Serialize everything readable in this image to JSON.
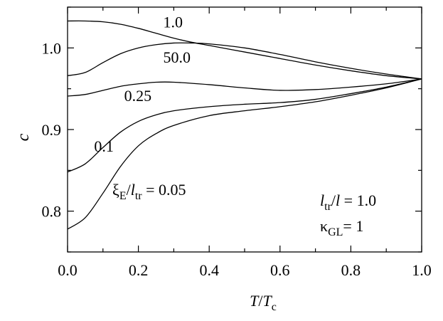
{
  "chart_data": {
    "type": "line",
    "xlim": [
      0.0,
      1.0
    ],
    "ylim": [
      0.75,
      1.05
    ],
    "x_ticks": [
      "0.0",
      "0.2",
      "0.4",
      "0.6",
      "0.8",
      "1.0"
    ],
    "x_tick_values": [
      0.0,
      0.2,
      0.4,
      0.6,
      0.8,
      1.0
    ],
    "y_ticks": [
      "0.8",
      "0.9",
      "1.0"
    ],
    "y_tick_values": [
      0.8,
      0.9,
      1.0
    ],
    "x_minor_step": 0.1,
    "y_minor_step": 0.05,
    "grid": false,
    "xlabel": {
      "main": "T",
      "sep": "/",
      "main2": "T",
      "sub2": "c"
    },
    "ylabel": "c",
    "series": [
      {
        "label": "ξE/ltr = 0.05",
        "x": [
          0.0,
          0.05,
          0.1,
          0.15,
          0.2,
          0.25,
          0.3,
          0.4,
          0.5,
          0.6,
          0.7,
          0.8,
          0.9,
          1.0
        ],
        "y": [
          0.778,
          0.792,
          0.822,
          0.855,
          0.88,
          0.895,
          0.905,
          0.917,
          0.923,
          0.928,
          0.934,
          0.942,
          0.951,
          0.962
        ]
      },
      {
        "label": "0.1",
        "x": [
          0.0,
          0.05,
          0.1,
          0.15,
          0.2,
          0.25,
          0.3,
          0.4,
          0.5,
          0.6,
          0.7,
          0.8,
          0.9,
          1.0
        ],
        "y": [
          0.848,
          0.858,
          0.878,
          0.897,
          0.91,
          0.918,
          0.923,
          0.928,
          0.931,
          0.933,
          0.937,
          0.944,
          0.952,
          0.962
        ]
      },
      {
        "label": "0.25",
        "x": [
          0.0,
          0.05,
          0.1,
          0.15,
          0.2,
          0.25,
          0.3,
          0.4,
          0.5,
          0.6,
          0.7,
          0.8,
          0.9,
          1.0
        ],
        "y": [
          0.941,
          0.943,
          0.948,
          0.953,
          0.956,
          0.958,
          0.958,
          0.955,
          0.951,
          0.948,
          0.949,
          0.952,
          0.956,
          0.962
        ]
      },
      {
        "label": "1.0",
        "x": [
          0.0,
          0.05,
          0.1,
          0.15,
          0.2,
          0.25,
          0.3,
          0.35,
          0.4,
          0.5,
          0.6,
          0.7,
          0.8,
          0.9,
          1.0
        ],
        "y": [
          1.033,
          1.033,
          1.032,
          1.029,
          1.024,
          1.018,
          1.012,
          1.007,
          1.003,
          0.995,
          0.987,
          0.979,
          0.972,
          0.966,
          0.962
        ]
      },
      {
        "label": "50.0",
        "x": [
          0.0,
          0.05,
          0.1,
          0.15,
          0.2,
          0.25,
          0.3,
          0.35,
          0.4,
          0.5,
          0.6,
          0.7,
          0.8,
          0.9,
          1.0
        ],
        "y": [
          0.966,
          0.97,
          0.982,
          0.993,
          1.0,
          1.004,
          1.006,
          1.006,
          1.005,
          1.0,
          0.992,
          0.983,
          0.975,
          0.968,
          0.962
        ]
      }
    ],
    "annotations": [
      {
        "text": "1.0",
        "x": 0.27,
        "y": 1.025
      },
      {
        "text": "50.0",
        "x": 0.27,
        "y": 0.982
      },
      {
        "text": "0.25",
        "x": 0.16,
        "y": 0.935
      },
      {
        "text": "0.1",
        "x": 0.075,
        "y": 0.873
      }
    ],
    "labels": {
      "xi": {
        "main": "ξ",
        "sub": "E",
        "sep": "/",
        "main2": "l",
        "sub2": "tr",
        "suffix": " = 0.05"
      },
      "ltr": {
        "main": "l",
        "sub": "tr",
        "sep": "/",
        "main2": "l",
        "suffix": " = 1.0"
      },
      "kappa": {
        "main": "κ",
        "sub": "GL",
        "suffix": "= 1"
      }
    }
  }
}
